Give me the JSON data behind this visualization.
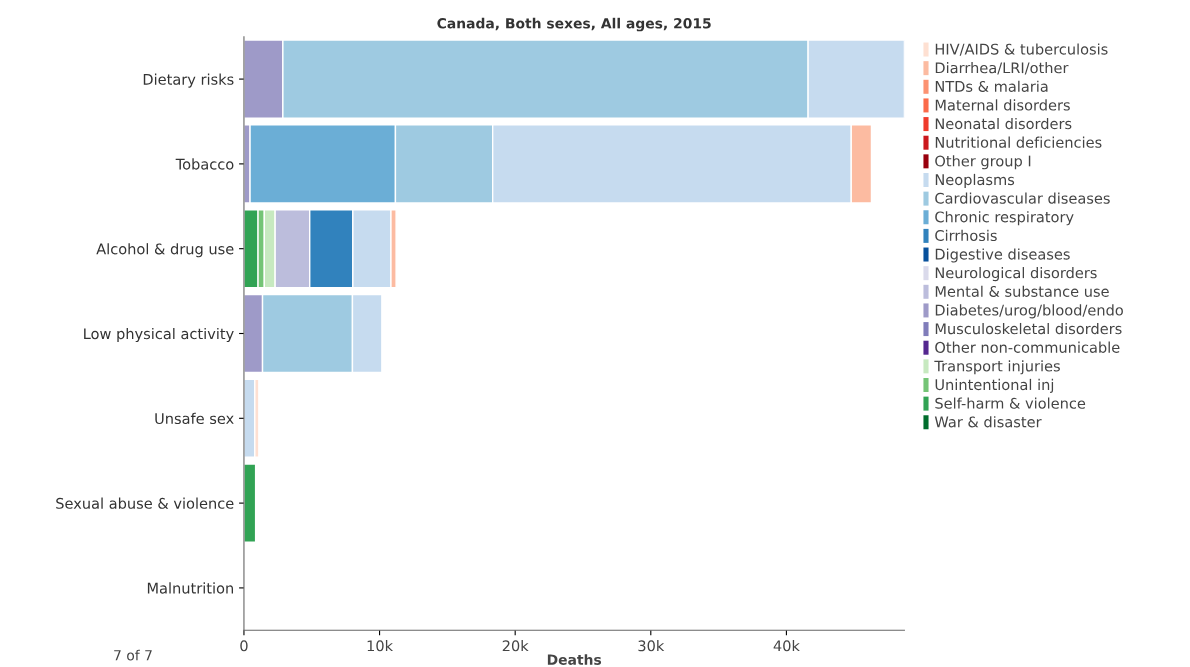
{
  "chart_data": {
    "type": "bar",
    "orientation": "horizontal",
    "stacked": true,
    "title": "Canada, Both sexes, All ages, 2015",
    "xlabel": "Deaths",
    "categories": [
      "Dietary risks",
      "Tobacco",
      "Alcohol & drug use",
      "Low physical activity",
      "Unsafe sex",
      "Sexual abuse & violence",
      "Malnutrition"
    ],
    "series": [
      {
        "name": "War & disaster",
        "color": "#006d2c",
        "values": [
          null,
          null,
          null,
          null,
          null,
          null,
          null
        ]
      },
      {
        "name": "Self-harm & violence",
        "color": "#31a354",
        "values": [
          null,
          null,
          1040,
          null,
          null,
          860,
          null
        ]
      },
      {
        "name": "Unintentional inj",
        "color": "#74c476",
        "values": [
          null,
          null,
          460,
          null,
          null,
          null,
          null
        ]
      },
      {
        "name": "Transport injuries",
        "color": "#c7e9c0",
        "values": [
          null,
          null,
          800,
          null,
          null,
          null,
          null
        ]
      },
      {
        "name": "Other non-communicable",
        "color": "#54278f",
        "values": [
          null,
          null,
          null,
          null,
          null,
          null,
          null
        ]
      },
      {
        "name": "Musculoskeletal disorders",
        "color": "#807dba",
        "values": [
          null,
          null,
          null,
          null,
          null,
          null,
          null
        ]
      },
      {
        "name": "Diabetes/urog/blood/endo",
        "color": "#9e9ac8",
        "values": [
          2870,
          450,
          null,
          1370,
          null,
          null,
          null
        ]
      },
      {
        "name": "Mental & substance use",
        "color": "#bcbddc",
        "values": [
          null,
          null,
          2550,
          null,
          null,
          null,
          null
        ]
      },
      {
        "name": "Neurological disorders",
        "color": "#dadaeb",
        "values": [
          null,
          null,
          null,
          null,
          null,
          null,
          null
        ]
      },
      {
        "name": "Digestive diseases",
        "color": "#08519c",
        "values": [
          null,
          null,
          null,
          null,
          null,
          null,
          null
        ]
      },
      {
        "name": "Cirrhosis",
        "color": "#3182bd",
        "values": [
          null,
          null,
          3180,
          null,
          null,
          null,
          null
        ]
      },
      {
        "name": "Chronic respiratory",
        "color": "#6baed6",
        "values": [
          null,
          10720,
          null,
          null,
          null,
          null,
          null
        ]
      },
      {
        "name": "Cardiovascular diseases",
        "color": "#9ecae1",
        "values": [
          38730,
          7170,
          null,
          6630,
          null,
          null,
          null
        ]
      },
      {
        "name": "Neoplasms",
        "color": "#c6dbef",
        "values": [
          7100,
          26440,
          2810,
          2170,
          800,
          null,
          null
        ]
      },
      {
        "name": "Other group I",
        "color": "#99000d",
        "values": [
          null,
          null,
          null,
          null,
          null,
          null,
          null
        ]
      },
      {
        "name": "Nutritional deficiencies",
        "color": "#cb181d",
        "values": [
          null,
          null,
          null,
          null,
          null,
          null,
          null
        ]
      },
      {
        "name": "Neonatal disorders",
        "color": "#ef3b2c",
        "values": [
          null,
          null,
          null,
          null,
          null,
          null,
          null
        ]
      },
      {
        "name": "Maternal disorders",
        "color": "#fb6a4a",
        "values": [
          null,
          null,
          null,
          null,
          null,
          null,
          null
        ]
      },
      {
        "name": "NTDs & malaria",
        "color": "#fc9272",
        "values": [
          null,
          null,
          null,
          null,
          null,
          null,
          null
        ]
      },
      {
        "name": "Diarrhea/LRI/other",
        "color": "#fcbba1",
        "values": [
          null,
          1490,
          380,
          null,
          null,
          null,
          null
        ]
      },
      {
        "name": "HIV/AIDS & tuberculosis",
        "color": "#fee0d2",
        "values": [
          null,
          null,
          null,
          null,
          300,
          null,
          null
        ]
      }
    ],
    "xlim": [
      0,
      48700
    ],
    "xticks": [
      {
        "value": 0,
        "label": "0"
      },
      {
        "value": 10000,
        "label": "10k"
      },
      {
        "value": 20000,
        "label": "20k"
      },
      {
        "value": 30000,
        "label": "30k"
      },
      {
        "value": 40000,
        "label": "40k"
      }
    ],
    "legend": "right",
    "annotations": [
      "7 of 7"
    ]
  }
}
